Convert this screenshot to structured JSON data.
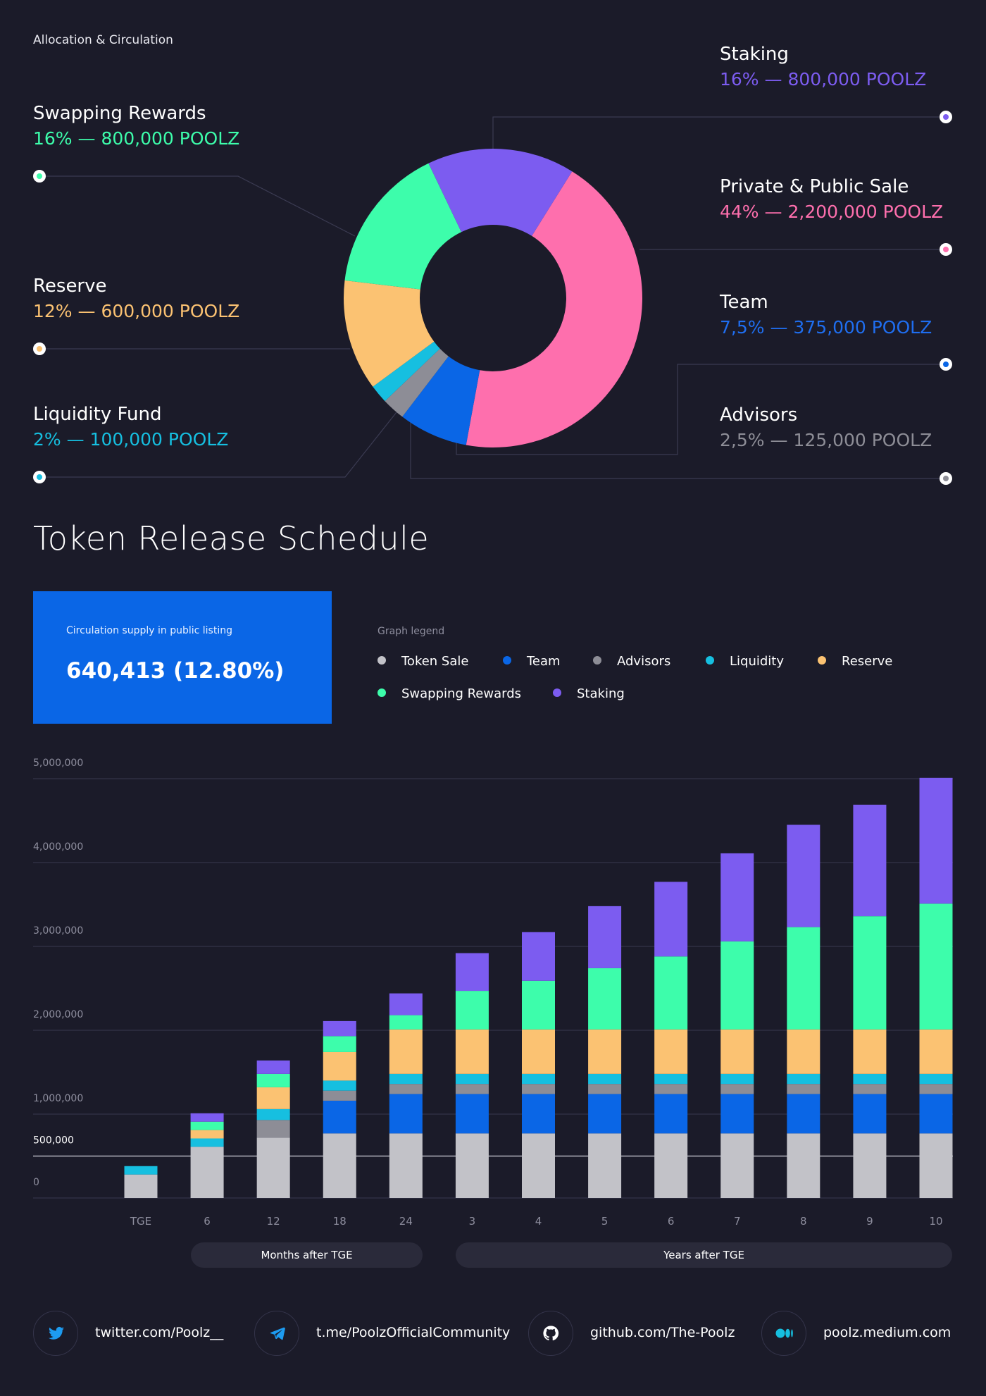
{
  "section_label": "Allocation & Circulation",
  "allocations": [
    {
      "key": "staking",
      "name": "Staking",
      "value": "16% — 800,000 POOLZ",
      "color": "#7c5cf0"
    },
    {
      "key": "swapping",
      "name": "Swapping Rewards",
      "value": "16% — 800,000 POOLZ",
      "color": "#3dfdab"
    },
    {
      "key": "sale",
      "name": "Private & Public Sale",
      "value": "44% — 2,200,000 POOLZ",
      "color": "#fe6fad"
    },
    {
      "key": "reserve",
      "name": "Reserve",
      "value": "12% — 600,000 POOLZ",
      "color": "#fbc272"
    },
    {
      "key": "team",
      "name": "Team",
      "value": "7,5% — 375,000 POOLZ",
      "color": "#0a66e6"
    },
    {
      "key": "liquidity",
      "name": "Liquidity Fund",
      "value": "2% — 100,000 POOLZ",
      "color": "#16bfe0"
    },
    {
      "key": "advisors",
      "name": "Advisors",
      "value": "2,5% — 125,000 POOLZ",
      "color": "#8d8d96"
    }
  ],
  "title": "Token Release Schedule",
  "supply": {
    "label": "Circulation supply in public listing",
    "value": "640,413 (12.80%)"
  },
  "legend": {
    "title": "Graph legend",
    "items": [
      {
        "label": "Token Sale",
        "color": "#c2c2c8"
      },
      {
        "label": "Team",
        "color": "#0a66e6"
      },
      {
        "label": "Advisors",
        "color": "#8d8d96"
      },
      {
        "label": "Liquidity",
        "color": "#16bfe0"
      },
      {
        "label": "Reserve",
        "color": "#fbc272"
      },
      {
        "label": "Swapping Rewards",
        "color": "#3dfdab"
      },
      {
        "label": "Staking",
        "color": "#7c5cf0"
      }
    ]
  },
  "periods": {
    "months": "Months after TGE",
    "years": "Years after TGE"
  },
  "social": [
    {
      "icon": "twitter-icon",
      "text": "twitter.com/Poolz__"
    },
    {
      "icon": "telegram-icon",
      "text": "t.me/PoolzOfficialCommunity"
    },
    {
      "icon": "github-icon",
      "text": "github.com/The-Poolz"
    },
    {
      "icon": "medium-icon",
      "text": "poolz.medium.com"
    }
  ],
  "chart_data": [
    {
      "type": "pie",
      "subtype": "donut",
      "title": "Allocation & Circulation",
      "categories": [
        "Private & Public Sale",
        "Team",
        "Advisors",
        "Liquidity Fund",
        "Reserve",
        "Swapping Rewards",
        "Staking"
      ],
      "values": [
        44,
        7.5,
        2.5,
        2,
        12,
        16,
        16
      ],
      "tokens": [
        2200000,
        375000,
        125000,
        100000,
        600000,
        800000,
        800000
      ],
      "colors": [
        "#fe6fad",
        "#0a66e6",
        "#8d8d96",
        "#16bfe0",
        "#fbc272",
        "#3dfdab",
        "#7c5cf0"
      ]
    },
    {
      "type": "bar",
      "subtype": "stacked",
      "title": "Token Release Schedule",
      "categories": [
        "TGE",
        "6",
        "12",
        "18",
        "24",
        "3",
        "4",
        "5",
        "6",
        "7",
        "8",
        "9",
        "10"
      ],
      "y_ticks": [
        "0",
        "500,000",
        "1,000,000",
        "2,000,000",
        "3,000,000",
        "4,000,000",
        "5,000,000"
      ],
      "y_tick_values": [
        0,
        500000,
        1000000,
        2000000,
        3000000,
        4000000,
        5000000
      ],
      "ylim": [
        0,
        5000000
      ],
      "series": [
        {
          "name": "Token Sale",
          "color": "#c2c2c8",
          "values": [
            280000,
            610000,
            720000,
            770000,
            770000,
            770000,
            770000,
            770000,
            770000,
            770000,
            770000,
            770000,
            770000
          ]
        },
        {
          "name": "Team",
          "color": "#0a66e6",
          "values": [
            0,
            0,
            0,
            390000,
            470000,
            470000,
            470000,
            470000,
            470000,
            470000,
            470000,
            470000,
            470000
          ]
        },
        {
          "name": "Advisors",
          "color": "#8d8d96",
          "values": [
            0,
            0,
            210000,
            120000,
            120000,
            120000,
            120000,
            120000,
            120000,
            120000,
            120000,
            120000,
            120000
          ]
        },
        {
          "name": "Liquidity",
          "color": "#16bfe0",
          "values": [
            100000,
            100000,
            130000,
            120000,
            120000,
            120000,
            120000,
            120000,
            120000,
            120000,
            120000,
            120000,
            120000
          ]
        },
        {
          "name": "Reserve",
          "color": "#fbc272",
          "values": [
            0,
            100000,
            260000,
            340000,
            530000,
            530000,
            530000,
            530000,
            530000,
            530000,
            530000,
            530000,
            530000
          ]
        },
        {
          "name": "Swapping Rewards",
          "color": "#3dfdab",
          "values": [
            0,
            100000,
            160000,
            190000,
            170000,
            460000,
            580000,
            730000,
            870000,
            1050000,
            1220000,
            1350000,
            1500000
          ]
        },
        {
          "name": "Staking",
          "color": "#7c5cf0",
          "values": [
            0,
            100000,
            160000,
            180000,
            260000,
            450000,
            580000,
            740000,
            890000,
            1050000,
            1220000,
            1330000,
            1500000
          ]
        }
      ]
    }
  ]
}
